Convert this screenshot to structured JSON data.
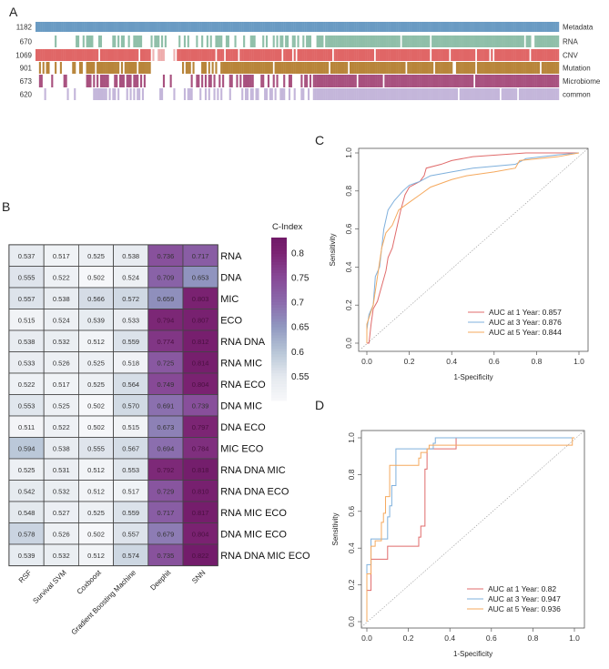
{
  "panels": {
    "a": "A",
    "b": "B",
    "c": "C",
    "d": "D"
  },
  "chart_data": [
    {
      "type": "bar",
      "panel": "A",
      "rows": [
        {
          "name": "Metadata",
          "count": 1182,
          "color": "#6a9bc3"
        },
        {
          "name": "RNA",
          "count": 670,
          "color": "#8fbfa9"
        },
        {
          "name": "CNV",
          "count": 1069,
          "color": "#e06666"
        },
        {
          "name": "Mutation",
          "count": 901,
          "color": "#b8853a"
        },
        {
          "name": "Microbiome",
          "count": 673,
          "color": "#a8517f"
        },
        {
          "name": "common",
          "count": 620,
          "color": "#c4b6da"
        }
      ]
    },
    {
      "type": "heatmap",
      "panel": "B",
      "legend_title": "C-Index",
      "legend_ticks": [
        "0.8",
        "0.75",
        "0.7",
        "0.65",
        "0.6",
        "0.55"
      ],
      "colorscale": [
        [
          0.5,
          "#f7f8fa"
        ],
        [
          0.55,
          "#e3e8ee"
        ],
        [
          0.6,
          "#b6c4d6"
        ],
        [
          0.65,
          "#9097c0"
        ],
        [
          0.7,
          "#8a68ab"
        ],
        [
          0.75,
          "#874896"
        ],
        [
          0.8,
          "#7b2372"
        ],
        [
          0.83,
          "#701a68"
        ]
      ],
      "columns": [
        "RSF",
        "Survival SVM",
        "Coxboost",
        "Gradient Boosting Machine",
        "Deephit",
        "SNN"
      ],
      "rows": [
        "RNA",
        "DNA",
        "MIC",
        "ECO",
        "RNA DNA",
        "RNA MIC",
        "RNA ECO",
        "DNA MIC",
        "DNA ECO",
        "MIC ECO",
        "RNA DNA MIC",
        "RNA DNA ECO",
        "RNA MIC ECO",
        "DNA MIC ECO",
        "RNA DNA MIC ECO"
      ],
      "values": [
        [
          "0.537",
          "0.517",
          "0.525",
          "0.538",
          "0.736",
          "0.717"
        ],
        [
          "0.555",
          "0.522",
          "0.502",
          "0.524",
          "0.709",
          "0.653"
        ],
        [
          "0.557",
          "0.538",
          "0.566",
          "0.572",
          "0.659",
          "0.803"
        ],
        [
          "0.515",
          "0.524",
          "0.539",
          "0.533",
          "0.794",
          "0.807"
        ],
        [
          "0.538",
          "0.532",
          "0.512",
          "0.559",
          "0.774",
          "0.812"
        ],
        [
          "0.533",
          "0.526",
          "0.525",
          "0.518",
          "0.725",
          "0.814"
        ],
        [
          "0.522",
          "0.517",
          "0.525",
          "0.564",
          "0.749",
          "0.804"
        ],
        [
          "0.553",
          "0.525",
          "0.502",
          "0.570",
          "0.691",
          "0.739"
        ],
        [
          "0.511",
          "0.522",
          "0.502",
          "0.515",
          "0.673",
          "0.797"
        ],
        [
          "0.594",
          "0.538",
          "0.555",
          "0.567",
          "0.694",
          "0.784"
        ],
        [
          "0.525",
          "0.531",
          "0.512",
          "0.553",
          "0.792",
          "0.818"
        ],
        [
          "0.542",
          "0.532",
          "0.512",
          "0.517",
          "0.729",
          "0.810"
        ],
        [
          "0.548",
          "0.527",
          "0.525",
          "0.559",
          "0.717",
          "0.817"
        ],
        [
          "0.578",
          "0.526",
          "0.502",
          "0.557",
          "0.679",
          "0.804"
        ],
        [
          "0.539",
          "0.532",
          "0.512",
          "0.574",
          "0.735",
          "0.822"
        ]
      ]
    },
    {
      "type": "line",
      "panel": "C",
      "xlabel": "1-Specificity",
      "ylabel": "Sensitivity",
      "xlim": [
        0,
        1
      ],
      "ylim": [
        0,
        1
      ],
      "ticks": [
        "0.0",
        "0.2",
        "0.4",
        "0.6",
        "0.8",
        "1.0"
      ],
      "series": [
        {
          "name": "AUC at 1 Year: 0.857",
          "color": "#e06b6b",
          "points": [
            [
              0,
              0
            ],
            [
              0.01,
              0
            ],
            [
              0.02,
              0.1
            ],
            [
              0.03,
              0.18
            ],
            [
              0.05,
              0.22
            ],
            [
              0.07,
              0.3
            ],
            [
              0.09,
              0.38
            ],
            [
              0.1,
              0.45
            ],
            [
              0.12,
              0.5
            ],
            [
              0.14,
              0.6
            ],
            [
              0.16,
              0.7
            ],
            [
              0.18,
              0.78
            ],
            [
              0.2,
              0.82
            ],
            [
              0.25,
              0.85
            ],
            [
              0.27,
              0.88
            ],
            [
              0.28,
              0.92
            ],
            [
              0.35,
              0.94
            ],
            [
              0.4,
              0.96
            ],
            [
              0.5,
              0.98
            ],
            [
              0.75,
              1
            ],
            [
              1,
              1
            ]
          ]
        },
        {
          "name": "AUC at 3 Year: 0.876",
          "color": "#7fb0dc",
          "points": [
            [
              0,
              0
            ],
            [
              0,
              0.07
            ],
            [
              0.01,
              0.15
            ],
            [
              0.03,
              0.2
            ],
            [
              0.04,
              0.35
            ],
            [
              0.06,
              0.4
            ],
            [
              0.07,
              0.5
            ],
            [
              0.08,
              0.6
            ],
            [
              0.1,
              0.7
            ],
            [
              0.13,
              0.75
            ],
            [
              0.17,
              0.8
            ],
            [
              0.2,
              0.83
            ],
            [
              0.25,
              0.85
            ],
            [
              0.3,
              0.88
            ],
            [
              0.4,
              0.9
            ],
            [
              0.5,
              0.92
            ],
            [
              0.7,
              0.94
            ],
            [
              0.75,
              0.97
            ],
            [
              0.9,
              0.99
            ],
            [
              1,
              1
            ]
          ]
        },
        {
          "name": "AUC at 5 Year: 0.844",
          "color": "#f5a95e",
          "points": [
            [
              0,
              0
            ],
            [
              0,
              0.1
            ],
            [
              0.03,
              0.2
            ],
            [
              0.05,
              0.35
            ],
            [
              0.07,
              0.5
            ],
            [
              0.09,
              0.58
            ],
            [
              0.12,
              0.62
            ],
            [
              0.15,
              0.7
            ],
            [
              0.2,
              0.74
            ],
            [
              0.25,
              0.78
            ],
            [
              0.3,
              0.82
            ],
            [
              0.4,
              0.86
            ],
            [
              0.47,
              0.88
            ],
            [
              0.6,
              0.9
            ],
            [
              0.7,
              0.92
            ],
            [
              0.72,
              0.96
            ],
            [
              0.9,
              0.98
            ],
            [
              1,
              1
            ]
          ]
        }
      ]
    },
    {
      "type": "line",
      "panel": "D",
      "xlabel": "1-Specificity",
      "ylabel": "Sensitivity",
      "xlim": [
        0,
        1
      ],
      "ylim": [
        0,
        1
      ],
      "ticks": [
        "0.0",
        "0.2",
        "0.4",
        "0.6",
        "0.8",
        "1.0"
      ],
      "series": [
        {
          "name": "AUC at 1 Year: 0.82",
          "color": "#e06b6b",
          "points": [
            [
              0,
              0
            ],
            [
              0,
              0.17
            ],
            [
              0.02,
              0.17
            ],
            [
              0.02,
              0.34
            ],
            [
              0.1,
              0.34
            ],
            [
              0.1,
              0.41
            ],
            [
              0.25,
              0.41
            ],
            [
              0.25,
              0.46
            ],
            [
              0.26,
              0.46
            ],
            [
              0.26,
              0.52
            ],
            [
              0.28,
              0.52
            ],
            [
              0.28,
              0.83
            ],
            [
              0.29,
              0.83
            ],
            [
              0.29,
              0.94
            ],
            [
              0.43,
              0.94
            ],
            [
              0.43,
              1
            ],
            [
              1,
              1
            ]
          ]
        },
        {
          "name": "AUC at 3 Year: 0.947",
          "color": "#7fb0dc",
          "points": [
            [
              0,
              0
            ],
            [
              0,
              0.31
            ],
            [
              0.02,
              0.31
            ],
            [
              0.02,
              0.45
            ],
            [
              0.1,
              0.45
            ],
            [
              0.1,
              0.57
            ],
            [
              0.11,
              0.57
            ],
            [
              0.11,
              0.63
            ],
            [
              0.12,
              0.63
            ],
            [
              0.12,
              0.74
            ],
            [
              0.14,
              0.74
            ],
            [
              0.14,
              0.94
            ],
            [
              0.32,
              0.94
            ],
            [
              0.32,
              0.97
            ],
            [
              0.33,
              0.97
            ],
            [
              0.33,
              1
            ],
            [
              1,
              1
            ]
          ]
        },
        {
          "name": "AUC at 5 Year: 0.936",
          "color": "#f5a95e",
          "points": [
            [
              0,
              0
            ],
            [
              0,
              0.26
            ],
            [
              0.02,
              0.26
            ],
            [
              0.02,
              0.41
            ],
            [
              0.04,
              0.41
            ],
            [
              0.04,
              0.44
            ],
            [
              0.07,
              0.44
            ],
            [
              0.07,
              0.54
            ],
            [
              0.08,
              0.54
            ],
            [
              0.08,
              0.59
            ],
            [
              0.09,
              0.59
            ],
            [
              0.09,
              0.68
            ],
            [
              0.11,
              0.68
            ],
            [
              0.11,
              0.85
            ],
            [
              0.25,
              0.85
            ],
            [
              0.25,
              0.89
            ],
            [
              0.26,
              0.89
            ],
            [
              0.26,
              0.92
            ],
            [
              0.29,
              0.92
            ],
            [
              0.29,
              0.94
            ],
            [
              0.3,
              0.94
            ],
            [
              0.3,
              0.96
            ],
            [
              0.99,
              0.96
            ],
            [
              0.99,
              1
            ],
            [
              1,
              1
            ]
          ]
        }
      ]
    }
  ]
}
